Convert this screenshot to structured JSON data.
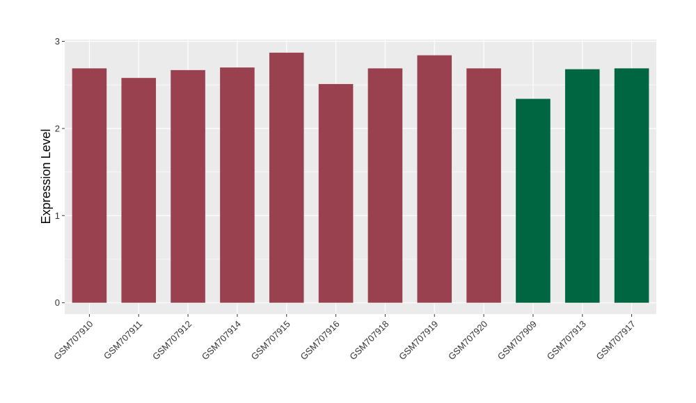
{
  "chart_data": {
    "type": "bar",
    "title": "",
    "xlabel": "",
    "ylabel": "Expression Level",
    "ylim": [
      -0.13,
      3.02
    ],
    "yticks": [
      0,
      1,
      2,
      3
    ],
    "grid": true,
    "categories": [
      "GSM707910",
      "GSM707911",
      "GSM707912",
      "GSM707914",
      "GSM707915",
      "GSM707916",
      "GSM707918",
      "GSM707919",
      "GSM707920",
      "GSM707909",
      "GSM707913",
      "GSM707917"
    ],
    "values": [
      2.69,
      2.58,
      2.67,
      2.7,
      2.87,
      2.51,
      2.69,
      2.84,
      2.69,
      2.34,
      2.68,
      2.69
    ],
    "bar_colors": [
      "#9a4150",
      "#9a4150",
      "#9a4150",
      "#9a4150",
      "#9a4150",
      "#9a4150",
      "#9a4150",
      "#9a4150",
      "#9a4150",
      "#006641",
      "#006641",
      "#006641"
    ],
    "panel_background": "#ebebeb",
    "gridline_color": "#ffffff"
  }
}
